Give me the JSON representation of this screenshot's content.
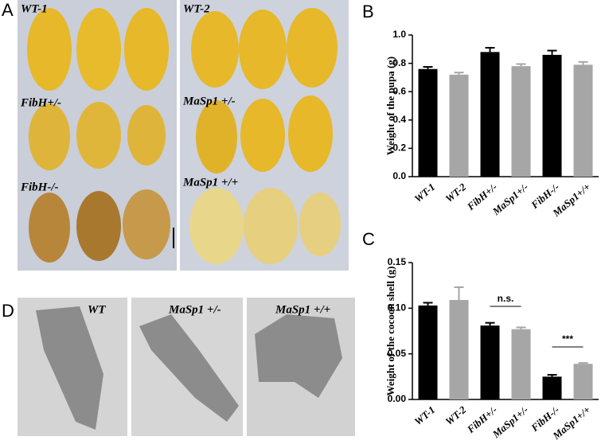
{
  "panels": {
    "a": "A",
    "b": "B",
    "c": "C",
    "d": "D"
  },
  "photo_labels": {
    "a": [
      "WT-1",
      "FibH+/-",
      "FibH-/-",
      "WT-2",
      "MaSp1 +/-",
      "MaSp1 +/+"
    ],
    "d": [
      "WT",
      "MaSp1 +/-",
      "MaSp1 +/+"
    ]
  },
  "chart_data": [
    {
      "type": "bar",
      "ylabel": "Weight of  the pupa (g)",
      "categories": [
        "WT-1",
        "WT-2",
        "FibH+/-",
        "MaSp1+/-",
        "FibH-/-",
        "MaSp1+/+"
      ],
      "values": [
        0.76,
        0.72,
        0.88,
        0.78,
        0.86,
        0.79
      ],
      "errors": [
        0.015,
        0.015,
        0.03,
        0.015,
        0.03,
        0.02
      ],
      "colors": [
        "#000000",
        "#a6a6a6",
        "#000000",
        "#a6a6a6",
        "#000000",
        "#a6a6a6"
      ],
      "ylim": [
        0,
        1.0
      ],
      "yticks": [
        {
          "value": 0,
          "label": "0.0"
        },
        0.2,
        0.4,
        0.6,
        0.8,
        {
          "value": 1.0,
          "label": "1.0"
        }
      ]
    },
    {
      "type": "bar",
      "ylabel": "Weight of  the cocoon shell (g)",
      "categories": [
        "WT-1",
        "WT-2",
        "FibH+/-",
        "MaSp1+/-",
        "FibH-/-",
        "MaSp1+/+"
      ],
      "values": [
        0.103,
        0.109,
        0.081,
        0.077,
        0.025,
        0.039
      ],
      "errors": [
        0.003,
        0.014,
        0.003,
        0.002,
        0.002,
        0.001
      ],
      "colors": [
        "#000000",
        "#a6a6a6",
        "#000000",
        "#a6a6a6",
        "#000000",
        "#a6a6a6"
      ],
      "ylim": [
        0,
        0.15
      ],
      "yticks": [
        {
          "value": 0,
          "label": "0.00"
        },
        0.05,
        {
          "value": 0.1,
          "label": "0.10"
        },
        0.15
      ],
      "annotations": [
        "n.s.",
        "***"
      ]
    }
  ]
}
